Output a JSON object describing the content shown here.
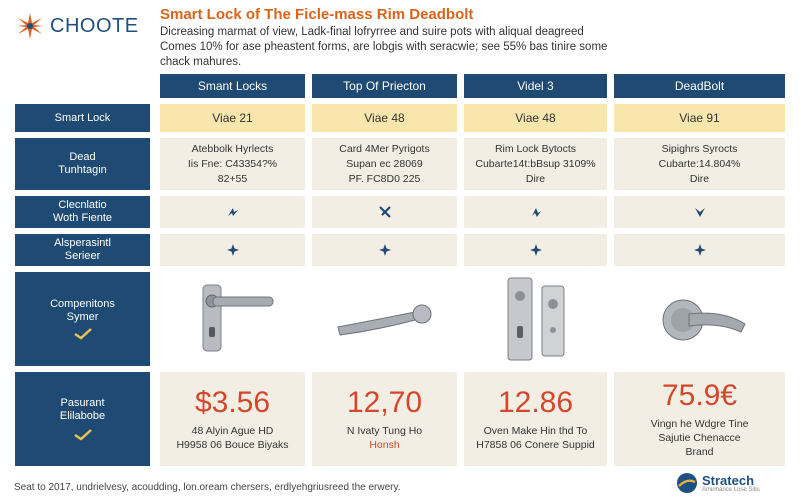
{
  "header": {
    "logo_text": "CHOOTE",
    "title": "Smart Lock of The Ficle-mass Rim Deadbolt",
    "subtitle": "Dicreasing marmat of view, Ladk-final lofryrree and suire pots with aliqual deagreed Comes 10% for ase pheastent forms, are lobgis with seracwie; see 55% bas tinire some chack mahures."
  },
  "columns": [
    "Smant Locks",
    "Top Of Priecton",
    "Videl 3",
    "DeadBolt"
  ],
  "rows": {
    "r1": {
      "label": [
        "Smart Lock"
      ],
      "values": [
        "Viae 21",
        "Viae 48",
        "Viae 48",
        "Viae 91"
      ]
    },
    "r2": {
      "label": [
        "Dead",
        "Tunhtagin"
      ],
      "cells": [
        [
          "Atebbolk Hyrlects",
          "Iis Fne: C43354?%",
          "82+55"
        ],
        [
          "Card 4Mer Pyrigots",
          "Supan ec 28069",
          "PF. FC8D0 225"
        ],
        [
          "Rim Lock Bytocts",
          "Cubarte14t:bBsup 3109%",
          "Dire"
        ],
        [
          "Sipighrs Syrocts",
          "Cubarte:14.804%",
          "Dire"
        ]
      ]
    },
    "r3": {
      "label": [
        "Clecnlatio",
        "Woth Fiente"
      ]
    },
    "r4": {
      "label": [
        "Alsperasintl",
        "Serieer"
      ]
    },
    "r5": {
      "label": [
        "Compenitons",
        "Symer"
      ]
    },
    "r6": {
      "label": [
        "Pasurant",
        "Elilabobe"
      ],
      "prices": [
        {
          "big": "$3.56",
          "lines": [
            "48 Alyin Ague HD",
            "H9958 06 Bouce Biyaks"
          ]
        },
        {
          "big": "12,70",
          "lines": [
            "N Ivaty Tung Ho",
            "Honsh"
          ]
        },
        {
          "big": "12.86",
          "lines": [
            "Oven Make Hin thd To",
            "H7858 06 Conere Suppid"
          ]
        },
        {
          "big": "75.9€",
          "lines": [
            "Vingn he Wdgre Tine",
            "Sajutie Chenacce",
            "Brand"
          ]
        }
      ]
    }
  },
  "footer": {
    "text": "Seat to 2017, undrielvesy, acoudding, lon.oream chersers, erdlyehgriusreed the erwery."
  },
  "brand": {
    "name": "Stratech",
    "sub": "Aminhance Lose Sitis"
  },
  "colors": {
    "navy": "#1f4a73",
    "yellow": "#f8e6ad",
    "beige": "#f3eee4",
    "orange": "#d9641c",
    "red": "#d4472a"
  }
}
